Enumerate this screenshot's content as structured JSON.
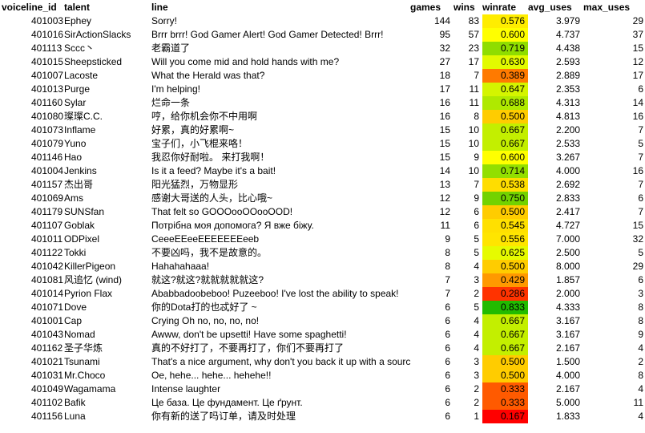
{
  "headers": {
    "voiceline_id": "voiceline_id",
    "talent": "talent",
    "line": "line",
    "games": "games",
    "wins": "wins",
    "winrate": "winrate",
    "avg_uses": "avg_uses",
    "max_uses": "max_uses"
  },
  "rows": [
    {
      "id": "401003",
      "talent": "Ephey",
      "line": "Sorry!",
      "games": "144",
      "wins": "83",
      "winrate": "0.576",
      "avg": "3.979",
      "max": "29",
      "color": "#ffed00"
    },
    {
      "id": "401016",
      "talent": "SirActionSlacks",
      "line": "Brrr brrr! God Gamer Alert! God Gamer Detected! Brrr!",
      "games": "95",
      "wins": "57",
      "winrate": "0.600",
      "avg": "4.737",
      "max": "37",
      "color": "#ffff00"
    },
    {
      "id": "401113",
      "talent": "Sccc丶",
      "line": "老霸道了",
      "games": "32",
      "wins": "23",
      "winrate": "0.719",
      "avg": "4.438",
      "max": "15",
      "color": "#8fdd00"
    },
    {
      "id": "401015",
      "talent": "Sheepsticked",
      "line": "Will you come mid and hold hands with me?",
      "games": "27",
      "wins": "17",
      "winrate": "0.630",
      "avg": "2.593",
      "max": "12",
      "color": "#e2fa00"
    },
    {
      "id": "401007",
      "talent": "Lacoste",
      "line": "What the Herald was that?",
      "games": "18",
      "wins": "7",
      "winrate": "0.389",
      "avg": "2.889",
      "max": "17",
      "color": "#ff7a00"
    },
    {
      "id": "401013",
      "talent": "Purge",
      "line": "I'm helping!",
      "games": "17",
      "wins": "11",
      "winrate": "0.647",
      "avg": "2.353",
      "max": "6",
      "color": "#d4f500"
    },
    {
      "id": "401160",
      "talent": "Sylar",
      "line": "烂命一条",
      "games": "16",
      "wins": "11",
      "winrate": "0.688",
      "avg": "4.313",
      "max": "14",
      "color": "#afe900"
    },
    {
      "id": "401080",
      "talent": "璨璨C.C.",
      "line": "哼，给你机会你不中用啊",
      "games": "16",
      "wins": "8",
      "winrate": "0.500",
      "avg": "4.813",
      "max": "16",
      "color": "#ffcc00"
    },
    {
      "id": "401073",
      "talent": "Inflame",
      "line": "好累，真的好累啊~",
      "games": "15",
      "wins": "10",
      "winrate": "0.667",
      "avg": "2.200",
      "max": "7",
      "color": "#c3ef00"
    },
    {
      "id": "401079",
      "talent": "Yuno",
      "line": "宝子们，小飞棍来咯！",
      "games": "15",
      "wins": "10",
      "winrate": "0.667",
      "avg": "2.533",
      "max": "5",
      "color": "#c3ef00"
    },
    {
      "id": "401146",
      "talent": "Hao",
      "line": "我忍你好耐啦。 来打我啊！",
      "games": "15",
      "wins": "9",
      "winrate": "0.600",
      "avg": "3.267",
      "max": "7",
      "color": "#ffff00"
    },
    {
      "id": "401004",
      "talent": "Jenkins",
      "line": "Is it a feed? Maybe it's a bait!",
      "games": "14",
      "wins": "10",
      "winrate": "0.714",
      "avg": "4.000",
      "max": "16",
      "color": "#93df00"
    },
    {
      "id": "401157",
      "talent": "杰出哥",
      "line": "阳光猛烈，万物显形",
      "games": "13",
      "wins": "7",
      "winrate": "0.538",
      "avg": "2.692",
      "max": "7",
      "color": "#ffdd00"
    },
    {
      "id": "401069",
      "talent": "Ams",
      "line": "感谢大哥送的人头，比心哦~",
      "games": "12",
      "wins": "9",
      "winrate": "0.750",
      "avg": "2.833",
      "max": "6",
      "color": "#72d200"
    },
    {
      "id": "401179",
      "talent": "SUNSfan",
      "line": "That felt so GOOOooOOooOOD!",
      "games": "12",
      "wins": "6",
      "winrate": "0.500",
      "avg": "2.417",
      "max": "7",
      "color": "#ffcc00"
    },
    {
      "id": "401107",
      "talent": "Goblak",
      "line": "Потрібна моя допомога? Я вже біжу.",
      "games": "11",
      "wins": "6",
      "winrate": "0.545",
      "avg": "4.727",
      "max": "15",
      "color": "#ffe000"
    },
    {
      "id": "401011",
      "talent": "ODPixel",
      "line": "CeeeEEeeEEEEEEEeeb",
      "games": "9",
      "wins": "5",
      "winrate": "0.556",
      "avg": "7.000",
      "max": "32",
      "color": "#ffe500"
    },
    {
      "id": "401122",
      "talent": "Tokki",
      "line": "不要凶吗，我不是故意的。",
      "games": "8",
      "wins": "5",
      "winrate": "0.625",
      "avg": "2.500",
      "max": "5",
      "color": "#e6fb00"
    },
    {
      "id": "401042",
      "talent": "KillerPigeon",
      "line": "Hahahahaaa!",
      "games": "8",
      "wins": "4",
      "winrate": "0.500",
      "avg": "8.000",
      "max": "29",
      "color": "#ffcc00"
    },
    {
      "id": "401081",
      "talent": "风追忆 (wind)",
      "line": "就这?就这?就就就就就这?",
      "games": "7",
      "wins": "3",
      "winrate": "0.429",
      "avg": "1.857",
      "max": "6",
      "color": "#ff9900"
    },
    {
      "id": "401014",
      "talent": "Pyrion Flax",
      "line": "Ababbadoobeboo! Puzeeboo! I've lost the ability to speak!",
      "games": "7",
      "wins": "2",
      "winrate": "0.286",
      "avg": "2.000",
      "max": "3",
      "color": "#ff3300"
    },
    {
      "id": "401071",
      "talent": "Dove",
      "line": "你的Dota打的也忒好了 ~",
      "games": "6",
      "wins": "5",
      "winrate": "0.833",
      "avg": "4.333",
      "max": "8",
      "color": "#22bb00"
    },
    {
      "id": "401001",
      "talent": "Cap",
      "line": "Crying Oh no, no, no, no!",
      "games": "6",
      "wins": "4",
      "winrate": "0.667",
      "avg": "3.167",
      "max": "8",
      "color": "#c3ef00"
    },
    {
      "id": "401043",
      "talent": "Nomad",
      "line": "Awww, don't be upsetti! Have some spaghetti!",
      "games": "6",
      "wins": "4",
      "winrate": "0.667",
      "avg": "3.167",
      "max": "9",
      "color": "#c3ef00"
    },
    {
      "id": "401162",
      "talent": "圣子华炼",
      "line": "真的不好打了，不要再打了，你们不要再打了",
      "games": "6",
      "wins": "4",
      "winrate": "0.667",
      "avg": "2.167",
      "max": "4",
      "color": "#c3ef00"
    },
    {
      "id": "401021",
      "talent": "Tsunami",
      "line": "That's a nice argument, why don't you back it up with a source?",
      "games": "6",
      "wins": "3",
      "winrate": "0.500",
      "avg": "1.500",
      "max": "2",
      "color": "#ffcc00"
    },
    {
      "id": "401031",
      "talent": "Mr.Choco",
      "line": "Oe, hehe... hehe... hehehe!!",
      "games": "6",
      "wins": "3",
      "winrate": "0.500",
      "avg": "4.000",
      "max": "8",
      "color": "#ffcc00"
    },
    {
      "id": "401049",
      "talent": "Wagamama",
      "line": "Intense laughter",
      "games": "6",
      "wins": "2",
      "winrate": "0.333",
      "avg": "2.167",
      "max": "4",
      "color": "#ff5a00"
    },
    {
      "id": "401102",
      "talent": "Bafik",
      "line": "Це база. Це фундамент. Це ґрунт.",
      "games": "6",
      "wins": "2",
      "winrate": "0.333",
      "avg": "5.000",
      "max": "11",
      "color": "#ff5a00"
    },
    {
      "id": "401156",
      "talent": "Luna",
      "line": "你有新的送了吗订单，请及时处理",
      "games": "6",
      "wins": "1",
      "winrate": "0.167",
      "avg": "1.833",
      "max": "4",
      "color": "#ff0000"
    }
  ]
}
